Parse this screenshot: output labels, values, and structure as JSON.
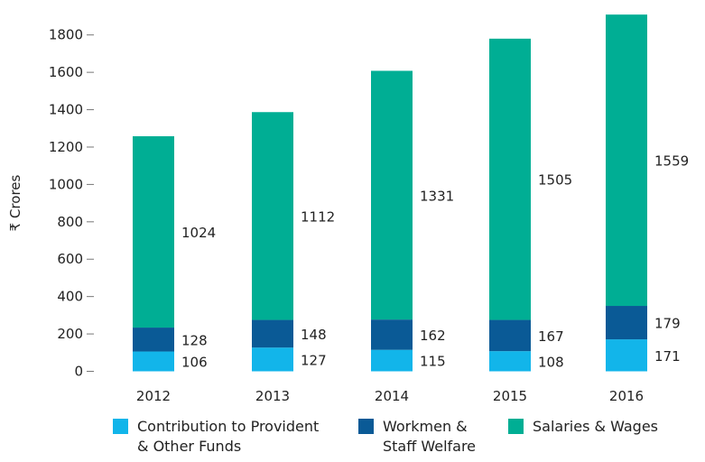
{
  "chart_data": {
    "type": "bar",
    "stacked": true,
    "categories": [
      "2012",
      "2013",
      "2014",
      "2015",
      "2016"
    ],
    "ylabel": "₹ Crores",
    "ylim": [
      0,
      1900
    ],
    "yticks": [
      0,
      200,
      400,
      600,
      800,
      1000,
      1200,
      1400,
      1600,
      1800
    ],
    "grid": false,
    "legend_position": "bottom",
    "series": [
      {
        "name": "Contribution to Provident\n& Other Funds",
        "color": "#12b5ea",
        "values": [
          106,
          127,
          115,
          108,
          171
        ]
      },
      {
        "name": "Workmen &\nStaff Welfare",
        "color": "#0a5a96",
        "values": [
          128,
          148,
          162,
          167,
          179
        ]
      },
      {
        "name": "Salaries & Wages",
        "color": "#00ae94",
        "values": [
          1024,
          1112,
          1331,
          1505,
          1559
        ]
      }
    ]
  }
}
